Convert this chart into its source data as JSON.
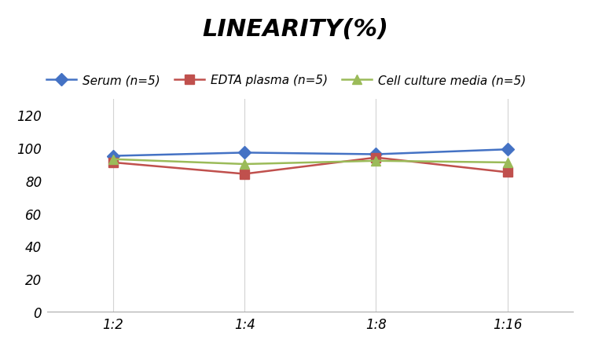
{
  "title": "LINEARITY(%)",
  "x_labels": [
    "1:2",
    "1:4",
    "1:8",
    "1:16"
  ],
  "x_positions": [
    0,
    1,
    2,
    3
  ],
  "series": [
    {
      "name": "Serum (n=5)",
      "values": [
        95,
        97,
        96,
        99
      ],
      "color": "#4472C4",
      "marker": "D",
      "linewidth": 1.8
    },
    {
      "name": "EDTA plasma (n=5)",
      "values": [
        91,
        84,
        94,
        85
      ],
      "color": "#C0504D",
      "marker": "s",
      "linewidth": 1.8
    },
    {
      "name": "Cell culture media (n=5)",
      "values": [
        93,
        90,
        92,
        91
      ],
      "color": "#9BBB59",
      "marker": "^",
      "linewidth": 1.8
    }
  ],
  "ylim": [
    0,
    130
  ],
  "yticks": [
    0,
    20,
    40,
    60,
    80,
    100,
    120
  ],
  "background_color": "#FFFFFF",
  "grid_color": "#D3D3D3",
  "title_fontsize": 22,
  "legend_fontsize": 11,
  "tick_fontsize": 12,
  "marker_size": 8
}
